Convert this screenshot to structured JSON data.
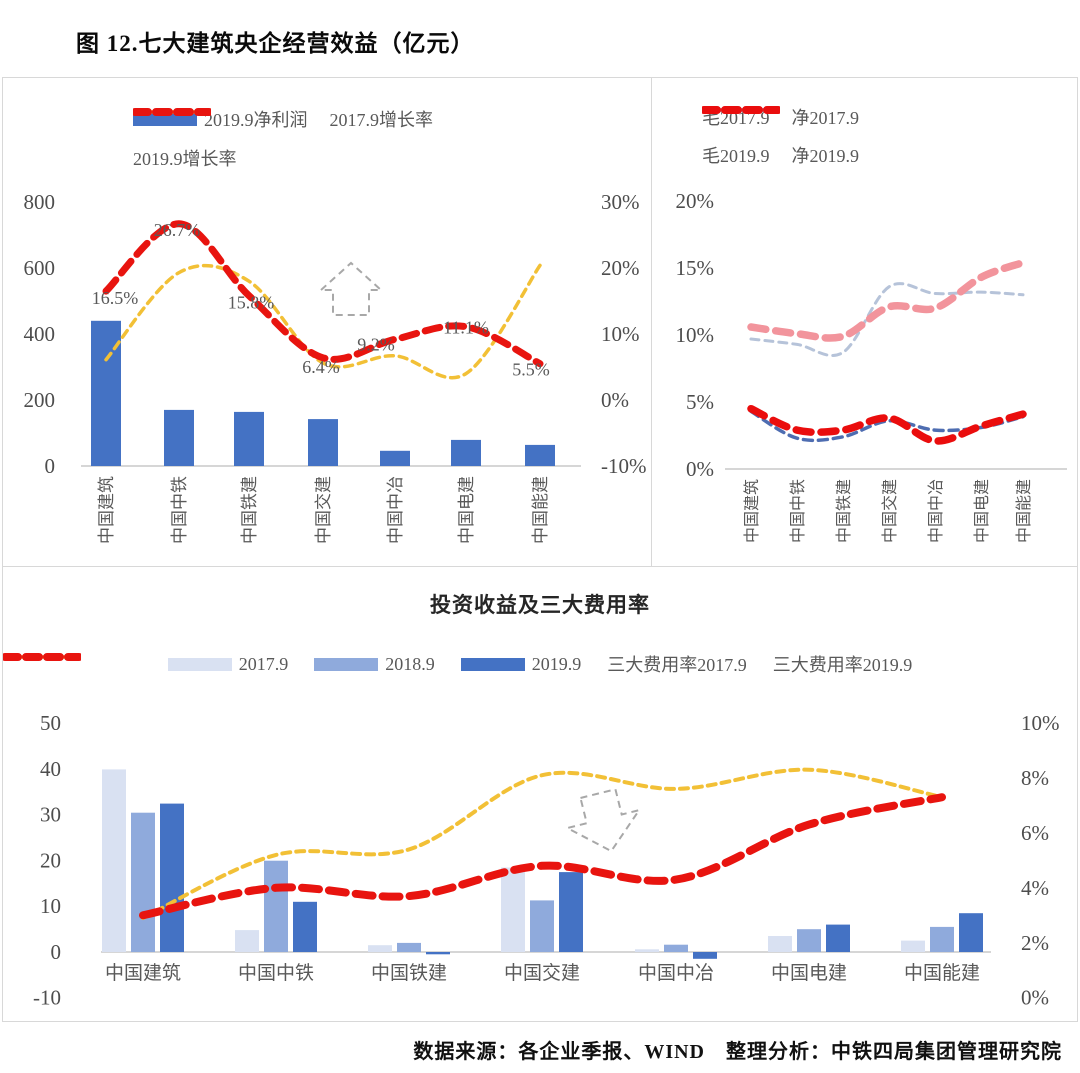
{
  "page": {
    "title": "图 12.七大建筑央企经营效益（亿元）",
    "footer": "数据来源：各企业季报、WIND　整理分析：中铁四局集团管理研究院"
  },
  "categories": [
    "中国建筑",
    "中国中铁",
    "中国铁建",
    "中国交建",
    "中国中冶",
    "中国电建",
    "中国能建"
  ],
  "colors": {
    "bar_blue": "#4472c4",
    "bar_light": "#d9e1f2",
    "bar_medium": "#8faadc",
    "gold": "#f2c036",
    "red": "#e8140f",
    "pink": "#f2949c",
    "gray_blue": "#b6c3d9",
    "steel_blue": "#4e6db1",
    "axis_text": "#4d4d4d",
    "category_text": "#595959",
    "annotation_gray": "#a8a8a8"
  },
  "chart_data": [
    {
      "id": "profit_growth",
      "type": "bar+line",
      "bar_series": [
        {
          "name": "2019.9净利润",
          "color": "#4472c4",
          "axis": "left",
          "values": [
            440,
            170,
            164,
            142,
            46,
            79,
            64
          ]
        }
      ],
      "line_series": [
        {
          "name": "2017.9增长率",
          "color": "#f2c036",
          "width": 3.5,
          "dash": "8 6",
          "axis": "right",
          "values": [
            6.1,
            19.3,
            18.0,
            5.6,
            6.7,
            4.0,
            20.4
          ]
        },
        {
          "name": "2019.9增长率",
          "color": "#e8140f",
          "width": 7,
          "dash": "15 9",
          "axis": "right",
          "values": [
            16.5,
            26.7,
            15.8,
            6.4,
            9.2,
            11.1,
            5.5
          ],
          "point_labels": [
            "16.5%",
            "26.7%",
            "15.8%",
            "6.4%",
            "9.2%",
            "11.1%",
            "5.5%"
          ]
        }
      ],
      "left_axis": {
        "min": 0,
        "max": 800,
        "ticks": [
          "800",
          "600",
          "400",
          "200",
          "0"
        ]
      },
      "right_axis": {
        "min": -10,
        "max": 30,
        "ticks": [
          "30%",
          "20%",
          "10%",
          "0%",
          "-10%"
        ]
      },
      "legend_rows": [
        [
          "2019.9净利润",
          "2017.9增长率"
        ],
        [
          "2019.9增长率"
        ]
      ],
      "annotation": "up-arrow"
    },
    {
      "id": "margins",
      "type": "line",
      "line_series": [
        {
          "name": "毛2017.9",
          "color": "#b6c3d9",
          "width": 3,
          "dash": "8 6",
          "axis": "left",
          "values": [
            9.7,
            9.3,
            8.7,
            13.6,
            13.1,
            13.2,
            13.0
          ]
        },
        {
          "name": "净2017.9",
          "color": "#4e6db1",
          "width": 3.5,
          "dash": "9 6",
          "axis": "left",
          "values": [
            4.3,
            2.3,
            2.4,
            3.6,
            2.9,
            3.1,
            3.9
          ]
        },
        {
          "name": "毛2019.9",
          "color": "#f2949c",
          "width": 7.5,
          "dash": "15 10",
          "axis": "left",
          "values": [
            10.6,
            10.1,
            9.9,
            12.1,
            12.0,
            14.3,
            15.4
          ]
        },
        {
          "name": "净2019.9",
          "color": "#ea0d0d",
          "width": 7.5,
          "dash": "15 10",
          "axis": "left",
          "values": [
            4.5,
            2.9,
            2.9,
            3.8,
            2.1,
            3.2,
            4.1
          ]
        }
      ],
      "left_axis": {
        "min": 0,
        "max": 20,
        "ticks": [
          "20%",
          "15%",
          "10%",
          "5%",
          "0%"
        ]
      },
      "legend_rows": [
        [
          "毛2017.9",
          "净2017.9"
        ],
        [
          "毛2019.9",
          "净2019.9"
        ]
      ]
    },
    {
      "id": "investment_expense",
      "type": "bar+line",
      "title": "投资收益及三大费用率",
      "bar_series": [
        {
          "name": "2017.9",
          "color": "#d9e1f2",
          "axis": "left",
          "values": [
            40,
            4.8,
            1.5,
            18.5,
            0.6,
            3.5,
            2.5
          ]
        },
        {
          "name": "2018.9",
          "color": "#8faadc",
          "axis": "left",
          "values": [
            30.5,
            20,
            2,
            11.3,
            1.6,
            5,
            5.5
          ]
        },
        {
          "name": "2019.9",
          "color": "#4472c4",
          "axis": "left",
          "values": [
            32.5,
            11,
            -0.5,
            17.5,
            -1.5,
            6,
            8.5
          ]
        }
      ],
      "line_series": [
        {
          "name": "三大费用率2017.9",
          "color": "#f2c036",
          "width": 4,
          "dash": "8 6",
          "axis": "right",
          "values": [
            2.9,
            5.2,
            5.4,
            8.1,
            7.6,
            8.3,
            7.3
          ]
        },
        {
          "name": "三大费用率2019.9",
          "color": "#e8140f",
          "width": 8,
          "dash": "17 10",
          "axis": "right",
          "values": [
            3.0,
            4.0,
            3.7,
            4.8,
            4.3,
            6.3,
            7.3
          ]
        }
      ],
      "left_axis": {
        "min": -10,
        "max": 50,
        "ticks": [
          "50",
          "40",
          "30",
          "20",
          "10",
          "0",
          "-10"
        ]
      },
      "right_axis": {
        "min": 0,
        "max": 10,
        "ticks": [
          "10%",
          "8%",
          "6%",
          "4%",
          "2%",
          "0%"
        ]
      },
      "legend_rows": [
        [
          "2017.9",
          "2018.9",
          "2019.9",
          "三大费用率2017.9",
          "三大费用率2019.9"
        ]
      ],
      "annotation": "down-arrow"
    }
  ]
}
